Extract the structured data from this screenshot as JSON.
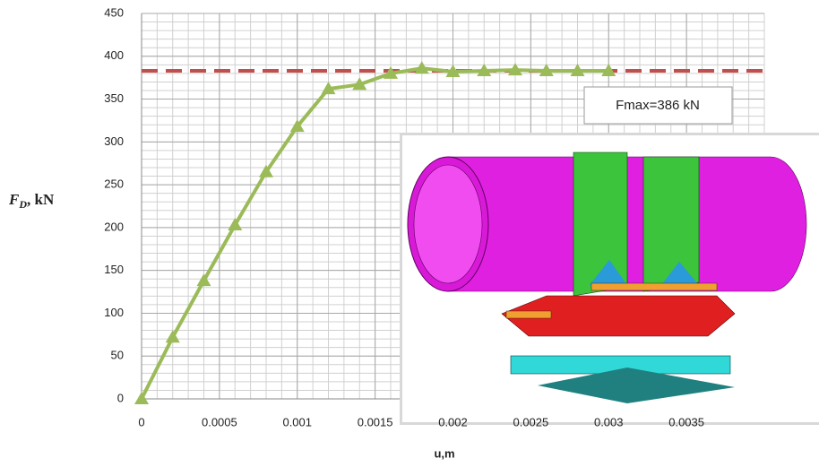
{
  "chart_data": {
    "type": "line",
    "x_label": "u,m",
    "y_label": [
      "F",
      "D",
      ", kN"
    ],
    "annotation": "Fmax=386 kN",
    "x": [
      0,
      0.0002,
      0.0004,
      0.0006,
      0.0008,
      0.001,
      0.0012,
      0.0014,
      0.0016,
      0.0018,
      0.002,
      0.0022,
      0.0024,
      0.0026,
      0.0028,
      0.003
    ],
    "series": [
      {
        "color": "#9bbb59",
        "values": [
          0,
          72,
          138,
          203,
          265,
          318,
          362,
          367,
          380,
          386,
          382,
          383,
          384,
          383,
          383,
          383
        ]
      }
    ],
    "reference_line": {
      "value": 383,
      "color": "#c0504d"
    },
    "xlim": [
      0,
      0.004
    ],
    "xticks": [
      0,
      0.0005,
      0.001,
      0.0015,
      0.002,
      0.0025,
      0.003,
      0.0035
    ],
    "ylim": [
      0,
      450
    ],
    "yticks": [
      0,
      50,
      100,
      150,
      200,
      250,
      300,
      350,
      400,
      450
    ],
    "grid": true
  }
}
